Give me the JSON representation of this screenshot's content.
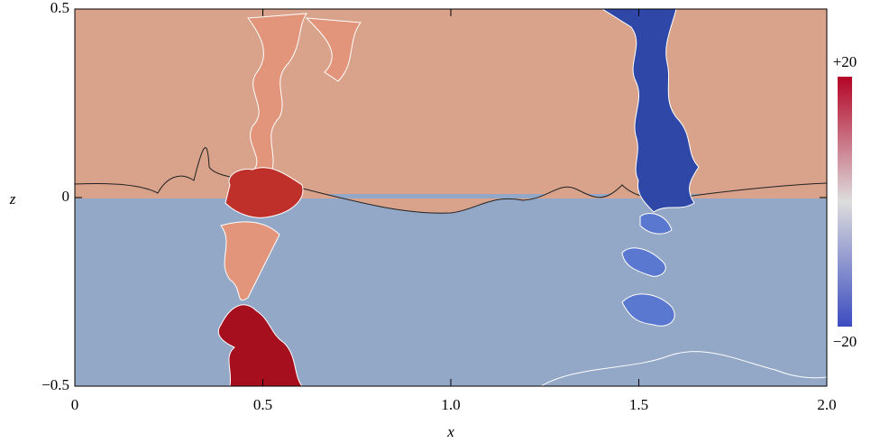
{
  "chart_data": {
    "type": "heatmap",
    "xlabel": "x",
    "ylabel": "z",
    "xlim": [
      0,
      2
    ],
    "ylim": [
      -0.5,
      0.5
    ],
    "xticks": [
      0,
      0.5,
      {
        "value": 1,
        "label": "1.0"
      },
      1.5,
      {
        "value": 2,
        "label": "2.0"
      }
    ],
    "yticks": [
      {
        "value": -0.5,
        "label": "−0.5"
      },
      0,
      0.5
    ],
    "colorbar": {
      "clim": [
        -20,
        20
      ],
      "ticks": [
        {
          "value": -20,
          "label": "−20"
        },
        {
          "value": 20,
          "label": "+20"
        }
      ],
      "colors": [
        "#3b4cc0",
        "#dddddd",
        "#b40426"
      ]
    }
  }
}
